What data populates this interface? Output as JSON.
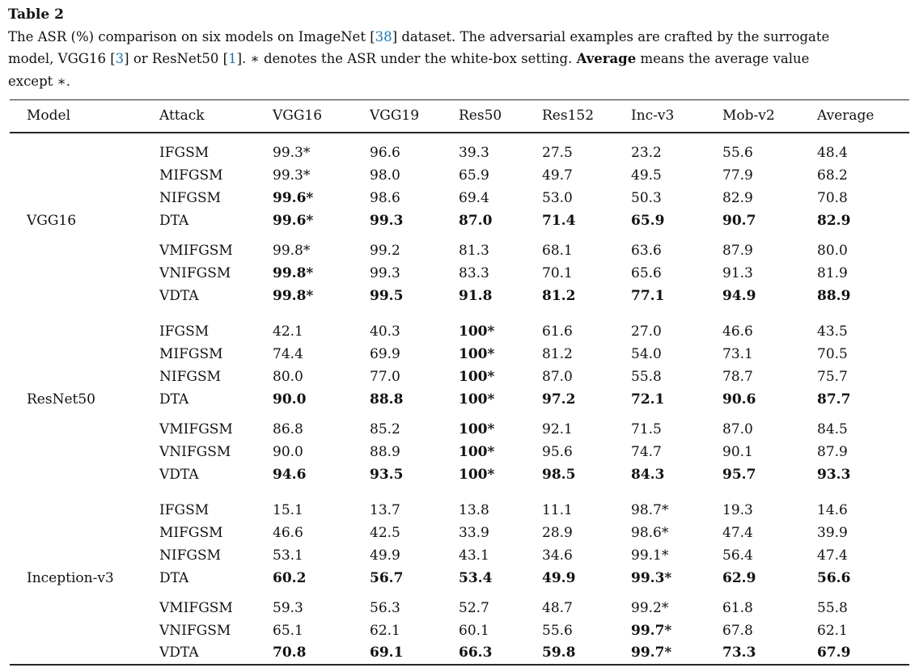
{
  "caption": {
    "label": "Table 2",
    "seg1": "The ASR (%) comparison on six models on ImageNet ",
    "cite1_open": "[",
    "cite1": "38",
    "cite1_close": "]",
    "seg2a": " dataset. The adversarial examples are crafted by the surrogate",
    "seg2b": "model, VGG16 ",
    "cite2_open": "[",
    "cite2": "3",
    "cite2_close": "]",
    "seg3": " or ResNet50 ",
    "cite3_open": "[",
    "cite3": "1",
    "cite3_close": "]",
    "seg4": ". ∗ denotes the ASR under the white-box setting. ",
    "bold_word": "Average",
    "seg5a": " means the average value",
    "seg5b": "except ∗."
  },
  "colors": {
    "citation_blue": "#1878b0",
    "text": "#111111",
    "rule": "#262626"
  },
  "table": {
    "columns": [
      "Model",
      "Attack",
      "VGG16",
      "VGG19",
      "Res50",
      "Res152",
      "Inc-v3",
      "Mob-v2",
      "Average"
    ],
    "blocks": [
      {
        "model": "VGG16",
        "model_row": 3,
        "groups": [
          {
            "rows": [
              {
                "attack": "IFGSM",
                "values": [
                  "99.3*",
                  "96.6",
                  "39.3",
                  "27.5",
                  "23.2",
                  "55.6",
                  "48.4"
                ],
                "bold": [
                  0,
                  0,
                  0,
                  0,
                  0,
                  0,
                  0
                ]
              },
              {
                "attack": "MIFGSM",
                "values": [
                  "99.3*",
                  "98.0",
                  "65.9",
                  "49.7",
                  "49.5",
                  "77.9",
                  "68.2"
                ],
                "bold": [
                  0,
                  0,
                  0,
                  0,
                  0,
                  0,
                  0
                ]
              },
              {
                "attack": "NIFGSM",
                "values": [
                  "99.6*",
                  "98.6",
                  "69.4",
                  "53.0",
                  "50.3",
                  "82.9",
                  "70.8"
                ],
                "bold": [
                  1,
                  0,
                  0,
                  0,
                  0,
                  0,
                  0
                ]
              },
              {
                "attack": "DTA",
                "values": [
                  "99.6*",
                  "99.3",
                  "87.0",
                  "71.4",
                  "65.9",
                  "90.7",
                  "82.9"
                ],
                "bold": [
                  1,
                  1,
                  1,
                  1,
                  1,
                  1,
                  1
                ]
              }
            ]
          },
          {
            "rows": [
              {
                "attack": "VMIFGSM",
                "values": [
                  "99.8*",
                  "99.2",
                  "81.3",
                  "68.1",
                  "63.6",
                  "87.9",
                  "80.0"
                ],
                "bold": [
                  0,
                  0,
                  0,
                  0,
                  0,
                  0,
                  0
                ]
              },
              {
                "attack": "VNIFGSM",
                "values": [
                  "99.8*",
                  "99.3",
                  "83.3",
                  "70.1",
                  "65.6",
                  "91.3",
                  "81.9"
                ],
                "bold": [
                  1,
                  0,
                  0,
                  0,
                  0,
                  0,
                  0
                ]
              },
              {
                "attack": "VDTA",
                "values": [
                  "99.8*",
                  "99.5",
                  "91.8",
                  "81.2",
                  "77.1",
                  "94.9",
                  "88.9"
                ],
                "bold": [
                  1,
                  1,
                  1,
                  1,
                  1,
                  1,
                  1
                ]
              }
            ]
          }
        ]
      },
      {
        "model": "ResNet50",
        "model_row": 3,
        "groups": [
          {
            "rows": [
              {
                "attack": "IFGSM",
                "values": [
                  "42.1",
                  "40.3",
                  "100*",
                  "61.6",
                  "27.0",
                  "46.6",
                  "43.5"
                ],
                "bold": [
                  0,
                  0,
                  1,
                  0,
                  0,
                  0,
                  0
                ]
              },
              {
                "attack": "MIFGSM",
                "values": [
                  "74.4",
                  "69.9",
                  "100*",
                  "81.2",
                  "54.0",
                  "73.1",
                  "70.5"
                ],
                "bold": [
                  0,
                  0,
                  1,
                  0,
                  0,
                  0,
                  0
                ]
              },
              {
                "attack": "NIFGSM",
                "values": [
                  "80.0",
                  "77.0",
                  "100*",
                  "87.0",
                  "55.8",
                  "78.7",
                  "75.7"
                ],
                "bold": [
                  0,
                  0,
                  1,
                  0,
                  0,
                  0,
                  0
                ]
              },
              {
                "attack": "DTA",
                "values": [
                  "90.0",
                  "88.8",
                  "100*",
                  "97.2",
                  "72.1",
                  "90.6",
                  "87.7"
                ],
                "bold": [
                  1,
                  1,
                  1,
                  1,
                  1,
                  1,
                  1
                ]
              }
            ]
          },
          {
            "rows": [
              {
                "attack": "VMIFGSM",
                "values": [
                  "86.8",
                  "85.2",
                  "100*",
                  "92.1",
                  "71.5",
                  "87.0",
                  "84.5"
                ],
                "bold": [
                  0,
                  0,
                  1,
                  0,
                  0,
                  0,
                  0
                ]
              },
              {
                "attack": "VNIFGSM",
                "values": [
                  "90.0",
                  "88.9",
                  "100*",
                  "95.6",
                  "74.7",
                  "90.1",
                  "87.9"
                ],
                "bold": [
                  0,
                  0,
                  1,
                  0,
                  0,
                  0,
                  0
                ]
              },
              {
                "attack": "VDTA",
                "values": [
                  "94.6",
                  "93.5",
                  "100*",
                  "98.5",
                  "84.3",
                  "95.7",
                  "93.3"
                ],
                "bold": [
                  1,
                  1,
                  1,
                  1,
                  1,
                  1,
                  1
                ]
              }
            ]
          }
        ]
      },
      {
        "model": "Inception-v3",
        "model_row": 3,
        "groups": [
          {
            "rows": [
              {
                "attack": "IFGSM",
                "values": [
                  "15.1",
                  "13.7",
                  "13.8",
                  "11.1",
                  "98.7*",
                  "19.3",
                  "14.6"
                ],
                "bold": [
                  0,
                  0,
                  0,
                  0,
                  0,
                  0,
                  0
                ]
              },
              {
                "attack": "MIFGSM",
                "values": [
                  "46.6",
                  "42.5",
                  "33.9",
                  "28.9",
                  "98.6*",
                  "47.4",
                  "39.9"
                ],
                "bold": [
                  0,
                  0,
                  0,
                  0,
                  0,
                  0,
                  0
                ]
              },
              {
                "attack": "NIFGSM",
                "values": [
                  "53.1",
                  "49.9",
                  "43.1",
                  "34.6",
                  "99.1*",
                  "56.4",
                  "47.4"
                ],
                "bold": [
                  0,
                  0,
                  0,
                  0,
                  0,
                  0,
                  0
                ]
              },
              {
                "attack": "DTA",
                "values": [
                  "60.2",
                  "56.7",
                  "53.4",
                  "49.9",
                  "99.3*",
                  "62.9",
                  "56.6"
                ],
                "bold": [
                  1,
                  1,
                  1,
                  1,
                  1,
                  1,
                  1
                ]
              }
            ]
          },
          {
            "rows": [
              {
                "attack": "VMIFGSM",
                "values": [
                  "59.3",
                  "56.3",
                  "52.7",
                  "48.7",
                  "99.2*",
                  "61.8",
                  "55.8"
                ],
                "bold": [
                  0,
                  0,
                  0,
                  0,
                  0,
                  0,
                  0
                ]
              },
              {
                "attack": "VNIFGSM",
                "values": [
                  "65.1",
                  "62.1",
                  "60.1",
                  "55.6",
                  "99.7*",
                  "67.8",
                  "62.1"
                ],
                "bold": [
                  0,
                  0,
                  0,
                  0,
                  1,
                  0,
                  0
                ]
              },
              {
                "attack": "VDTA",
                "values": [
                  "70.8",
                  "69.1",
                  "66.3",
                  "59.8",
                  "99.7*",
                  "73.3",
                  "67.9"
                ],
                "bold": [
                  1,
                  1,
                  1,
                  1,
                  1,
                  1,
                  1
                ]
              }
            ]
          }
        ]
      }
    ]
  }
}
